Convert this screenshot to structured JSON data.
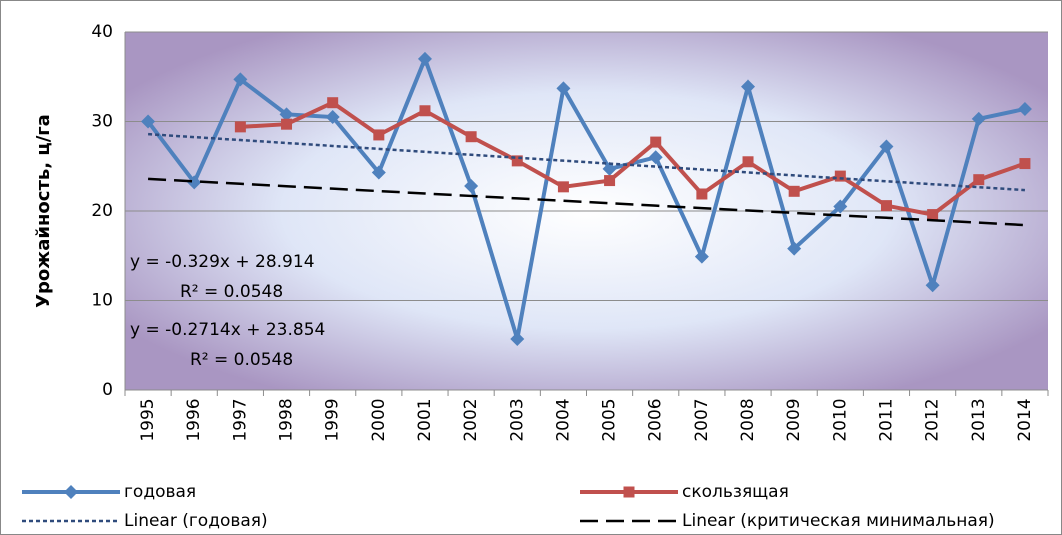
{
  "chart_data": {
    "type": "line",
    "ylabel": "Урожайность, ц/га",
    "categories": [
      "1995",
      "1996",
      "1997",
      "1998",
      "1999",
      "2000",
      "2001",
      "2002",
      "2003",
      "2004",
      "2005",
      "2006",
      "2007",
      "2008",
      "2009",
      "2010",
      "2011",
      "2012",
      "2013",
      "2014"
    ],
    "series": [
      {
        "name": "годовая",
        "color": "#4f81bd",
        "marker": "diamond",
        "dash": "none",
        "values": [
          30,
          23.2,
          34.7,
          30.8,
          30.5,
          24.3,
          37,
          22.8,
          5.7,
          33.7,
          24.7,
          26,
          14.9,
          33.9,
          15.8,
          20.5,
          27.2,
          11.7,
          30.3,
          31.4
        ]
      },
      {
        "name": "скользящая",
        "color": "#c0504d",
        "marker": "square",
        "dash": "none",
        "values": [
          null,
          null,
          29.4,
          29.7,
          32.1,
          28.5,
          31.2,
          28.3,
          25.6,
          22.7,
          23.4,
          27.7,
          21.9,
          25.5,
          22.2,
          23.9,
          20.6,
          19.6,
          23.5,
          25.3
        ]
      },
      {
        "name": "Linear (годовая)",
        "color": "#2f4b7c",
        "marker": "none",
        "dash": "4 3",
        "values": [
          28.585,
          28.256,
          27.927,
          27.598,
          27.269,
          26.94,
          26.611,
          26.282,
          25.953,
          25.624,
          25.295,
          24.966,
          24.637,
          24.308,
          23.979,
          23.65,
          23.321,
          22.992,
          22.663,
          22.334
        ]
      },
      {
        "name": "Linear (критическая минимальная)",
        "color": "#000000",
        "marker": "none",
        "dash": "18 8",
        "values": [
          23.583,
          23.311,
          23.04,
          22.768,
          22.497,
          22.226,
          21.954,
          21.683,
          21.411,
          21.14,
          20.869,
          20.597,
          20.326,
          20.054,
          19.783,
          19.512,
          19.24,
          18.969,
          18.697,
          18.426
        ]
      }
    ],
    "annotations": [
      "y = -0.329x + 28.914",
      "R² = 0.0548",
      "y = -0.2714x + 23.854",
      "R² = 0.0548"
    ],
    "ylim": [
      0,
      40
    ],
    "yticks": [
      0,
      10,
      20,
      30,
      40
    ],
    "grid": true,
    "legend": "bottom"
  }
}
